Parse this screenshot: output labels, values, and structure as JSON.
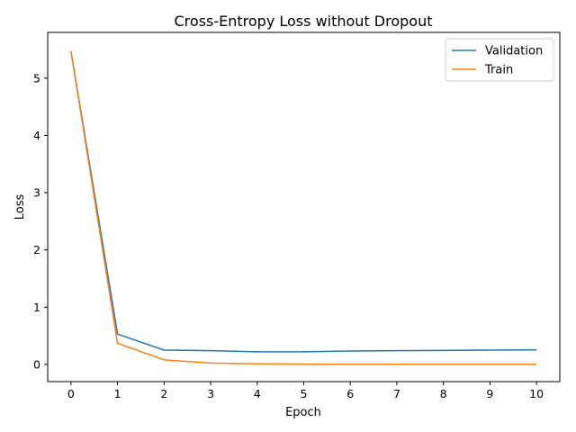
{
  "chart_data": {
    "type": "line",
    "title": "Cross-Entropy Loss without Dropout",
    "xlabel": "Epoch",
    "ylabel": "Loss",
    "x": [
      0,
      1,
      2,
      3,
      4,
      5,
      6,
      7,
      8,
      9,
      10
    ],
    "xticks": [
      "0",
      "1",
      "2",
      "3",
      "4",
      "5",
      "6",
      "7",
      "8",
      "9",
      "10"
    ],
    "yticks": [
      "0",
      "1",
      "2",
      "3",
      "4",
      "5"
    ],
    "xlim": [
      -0.5,
      10.5
    ],
    "ylim": [
      -0.3,
      5.8
    ],
    "grid": false,
    "legend_position": "top-right",
    "series": [
      {
        "name": "Validation",
        "color": "#1f77b4",
        "values": [
          5.47,
          0.53,
          0.25,
          0.24,
          0.22,
          0.22,
          0.235,
          0.24,
          0.245,
          0.25,
          0.255
        ]
      },
      {
        "name": "Train",
        "color": "#ff7f0e",
        "values": [
          5.47,
          0.37,
          0.08,
          0.025,
          0.01,
          0.005,
          0.003,
          0.003,
          0.003,
          0.002,
          0.002
        ]
      }
    ]
  }
}
